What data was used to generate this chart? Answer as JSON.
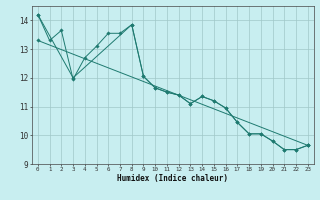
{
  "title": "",
  "xlabel": "Humidex (Indice chaleur)",
  "bg_color": "#c8eef0",
  "line_color": "#1e7a70",
  "grid_color": "#a0c8c8",
  "xlim": [
    -0.5,
    23.5
  ],
  "ylim": [
    9.0,
    14.5
  ],
  "yticks": [
    9,
    10,
    11,
    12,
    13,
    14
  ],
  "xticks": [
    0,
    1,
    2,
    3,
    4,
    5,
    6,
    7,
    8,
    9,
    10,
    11,
    12,
    13,
    14,
    15,
    16,
    17,
    18,
    19,
    20,
    21,
    22,
    23
  ],
  "line1_x": [
    0,
    1,
    2,
    3,
    4,
    5,
    6,
    7,
    8,
    9,
    10,
    11,
    12,
    13,
    14,
    15,
    16,
    17,
    18,
    19,
    20,
    21,
    22,
    23
  ],
  "line1_y": [
    14.2,
    13.3,
    13.65,
    11.95,
    12.7,
    13.1,
    13.55,
    13.55,
    13.85,
    12.05,
    11.65,
    11.5,
    11.4,
    11.1,
    11.35,
    11.2,
    10.95,
    10.45,
    10.05,
    10.05,
    9.8,
    9.5,
    9.5,
    9.65
  ],
  "line2_x": [
    0,
    3,
    8,
    9,
    10,
    11,
    12,
    13,
    14,
    15,
    16,
    17,
    18,
    19,
    20,
    21,
    22,
    23
  ],
  "line2_y": [
    14.2,
    12.0,
    13.85,
    12.05,
    11.65,
    11.5,
    11.4,
    11.1,
    11.35,
    11.2,
    10.95,
    10.45,
    10.05,
    10.05,
    9.8,
    9.5,
    9.5,
    9.65
  ],
  "line3_x": [
    0,
    23
  ],
  "line3_y": [
    13.3,
    9.65
  ]
}
